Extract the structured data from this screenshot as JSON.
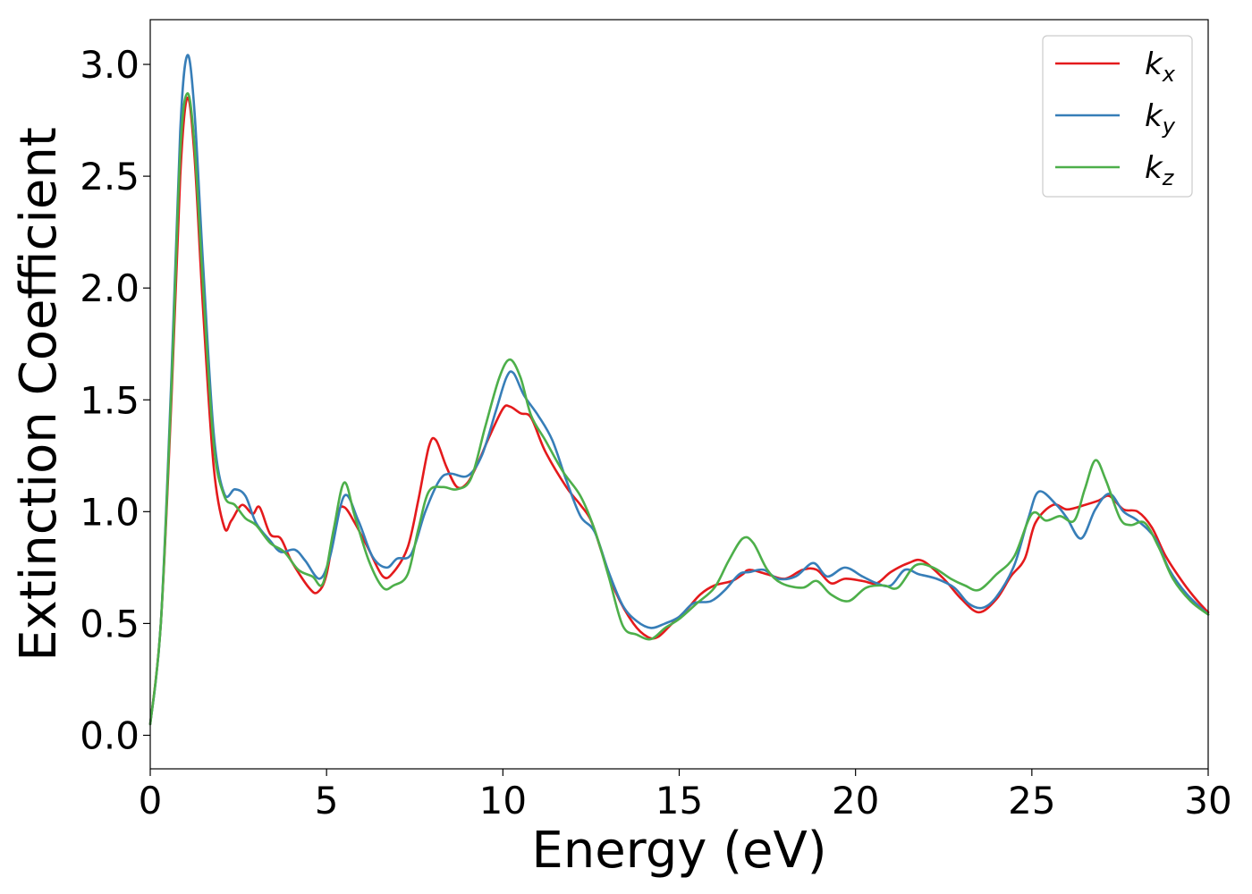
{
  "chart_data": {
    "type": "line",
    "title": "",
    "xlabel": "Energy (eV)",
    "ylabel": "Extinction Coefficient",
    "xlim": [
      0,
      30
    ],
    "ylim": [
      -0.15,
      3.2
    ],
    "xticks": [
      0,
      5,
      10,
      15,
      20,
      25,
      30
    ],
    "xtick_labels": [
      "0",
      "5",
      "10",
      "15",
      "20",
      "25",
      "30"
    ],
    "yticks": [
      0.0,
      0.5,
      1.0,
      1.5,
      2.0,
      2.5,
      3.0
    ],
    "ytick_labels": [
      "0.0",
      "0.5",
      "1.0",
      "1.5",
      "2.0",
      "2.5",
      "3.0"
    ],
    "grid": false,
    "legend_position": "top-right",
    "series": [
      {
        "name": "k",
        "subscript": "x",
        "color": "#e41a1c",
        "points": [
          [
            0,
            0.05
          ],
          [
            0.3,
            0.5
          ],
          [
            0.6,
            1.5
          ],
          [
            0.85,
            2.5
          ],
          [
            1.05,
            2.85
          ],
          [
            1.25,
            2.6
          ],
          [
            1.5,
            1.9
          ],
          [
            1.8,
            1.2
          ],
          [
            2.1,
            0.93
          ],
          [
            2.3,
            0.96
          ],
          [
            2.6,
            1.03
          ],
          [
            2.9,
            0.99
          ],
          [
            3.1,
            1.02
          ],
          [
            3.4,
            0.9
          ],
          [
            3.7,
            0.88
          ],
          [
            4.0,
            0.78
          ],
          [
            4.5,
            0.66
          ],
          [
            4.75,
            0.64
          ],
          [
            5.0,
            0.72
          ],
          [
            5.3,
            0.98
          ],
          [
            5.5,
            1.02
          ],
          [
            5.8,
            0.95
          ],
          [
            6.2,
            0.83
          ],
          [
            6.6,
            0.71
          ],
          [
            6.9,
            0.73
          ],
          [
            7.3,
            0.84
          ],
          [
            7.6,
            1.05
          ],
          [
            7.9,
            1.29
          ],
          [
            8.1,
            1.32
          ],
          [
            8.4,
            1.2
          ],
          [
            8.7,
            1.11
          ],
          [
            9.0,
            1.13
          ],
          [
            9.3,
            1.22
          ],
          [
            9.6,
            1.33
          ],
          [
            10.0,
            1.46
          ],
          [
            10.2,
            1.47
          ],
          [
            10.5,
            1.44
          ],
          [
            10.8,
            1.42
          ],
          [
            11.2,
            1.27
          ],
          [
            11.8,
            1.11
          ],
          [
            12.2,
            1.03
          ],
          [
            12.5,
            0.96
          ],
          [
            12.8,
            0.82
          ],
          [
            13.2,
            0.64
          ],
          [
            13.7,
            0.5
          ],
          [
            14.1,
            0.44
          ],
          [
            14.4,
            0.44
          ],
          [
            14.8,
            0.5
          ],
          [
            15.2,
            0.56
          ],
          [
            15.6,
            0.63
          ],
          [
            16.0,
            0.67
          ],
          [
            16.5,
            0.69
          ],
          [
            16.8,
            0.72
          ],
          [
            17.0,
            0.74
          ],
          [
            17.5,
            0.72
          ],
          [
            18.0,
            0.7
          ],
          [
            18.5,
            0.74
          ],
          [
            18.9,
            0.74
          ],
          [
            19.3,
            0.68
          ],
          [
            19.7,
            0.7
          ],
          [
            20.2,
            0.69
          ],
          [
            20.6,
            0.68
          ],
          [
            21.0,
            0.73
          ],
          [
            21.5,
            0.77
          ],
          [
            21.9,
            0.78
          ],
          [
            22.5,
            0.7
          ],
          [
            23.0,
            0.61
          ],
          [
            23.5,
            0.55
          ],
          [
            24.0,
            0.61
          ],
          [
            24.4,
            0.71
          ],
          [
            24.8,
            0.79
          ],
          [
            25.1,
            0.95
          ],
          [
            25.6,
            1.03
          ],
          [
            26.0,
            1.01
          ],
          [
            26.5,
            1.03
          ],
          [
            26.9,
            1.05
          ],
          [
            27.2,
            1.07
          ],
          [
            27.6,
            1.01
          ],
          [
            28.0,
            1.0
          ],
          [
            28.4,
            0.93
          ],
          [
            28.8,
            0.8
          ],
          [
            29.3,
            0.68
          ],
          [
            29.7,
            0.6
          ],
          [
            30.0,
            0.55
          ]
        ]
      },
      {
        "name": "k",
        "subscript": "y",
        "color": "#377eb8",
        "points": [
          [
            0,
            0.05
          ],
          [
            0.3,
            0.5
          ],
          [
            0.6,
            1.6
          ],
          [
            0.85,
            2.7
          ],
          [
            1.05,
            3.04
          ],
          [
            1.25,
            2.8
          ],
          [
            1.5,
            2.1
          ],
          [
            1.8,
            1.35
          ],
          [
            2.1,
            1.08
          ],
          [
            2.4,
            1.1
          ],
          [
            2.7,
            1.07
          ],
          [
            3.0,
            0.95
          ],
          [
            3.4,
            0.87
          ],
          [
            3.7,
            0.82
          ],
          [
            4.1,
            0.83
          ],
          [
            4.4,
            0.78
          ],
          [
            4.8,
            0.7
          ],
          [
            5.1,
            0.8
          ],
          [
            5.5,
            1.07
          ],
          [
            5.9,
            0.96
          ],
          [
            6.3,
            0.8
          ],
          [
            6.7,
            0.75
          ],
          [
            7.0,
            0.79
          ],
          [
            7.4,
            0.81
          ],
          [
            7.8,
            1.0
          ],
          [
            8.2,
            1.14
          ],
          [
            8.5,
            1.17
          ],
          [
            9.0,
            1.16
          ],
          [
            9.4,
            1.25
          ],
          [
            9.8,
            1.45
          ],
          [
            10.1,
            1.6
          ],
          [
            10.3,
            1.62
          ],
          [
            10.6,
            1.52
          ],
          [
            11.0,
            1.43
          ],
          [
            11.4,
            1.32
          ],
          [
            11.8,
            1.14
          ],
          [
            12.2,
            0.98
          ],
          [
            12.6,
            0.91
          ],
          [
            13.0,
            0.73
          ],
          [
            13.4,
            0.58
          ],
          [
            13.8,
            0.51
          ],
          [
            14.2,
            0.48
          ],
          [
            14.6,
            0.5
          ],
          [
            15.0,
            0.53
          ],
          [
            15.4,
            0.59
          ],
          [
            15.9,
            0.6
          ],
          [
            16.3,
            0.65
          ],
          [
            16.7,
            0.72
          ],
          [
            17.0,
            0.73
          ],
          [
            17.4,
            0.74
          ],
          [
            17.8,
            0.7
          ],
          [
            18.3,
            0.71
          ],
          [
            18.8,
            0.77
          ],
          [
            19.2,
            0.71
          ],
          [
            19.7,
            0.75
          ],
          [
            20.2,
            0.71
          ],
          [
            20.6,
            0.68
          ],
          [
            21.0,
            0.67
          ],
          [
            21.4,
            0.74
          ],
          [
            21.8,
            0.72
          ],
          [
            22.3,
            0.7
          ],
          [
            22.8,
            0.66
          ],
          [
            23.2,
            0.59
          ],
          [
            23.6,
            0.57
          ],
          [
            24.0,
            0.62
          ],
          [
            24.5,
            0.76
          ],
          [
            24.9,
            0.97
          ],
          [
            25.2,
            1.09
          ],
          [
            25.7,
            1.03
          ],
          [
            26.0,
            0.97
          ],
          [
            26.4,
            0.88
          ],
          [
            26.8,
            1.01
          ],
          [
            27.2,
            1.08
          ],
          [
            27.6,
            1.0
          ],
          [
            28.0,
            0.96
          ],
          [
            28.5,
            0.88
          ],
          [
            28.9,
            0.74
          ],
          [
            29.4,
            0.63
          ],
          [
            30.0,
            0.54
          ]
        ]
      },
      {
        "name": "k",
        "subscript": "z",
        "color": "#4daf4a",
        "points": [
          [
            0,
            0.05
          ],
          [
            0.3,
            0.5
          ],
          [
            0.6,
            1.55
          ],
          [
            0.85,
            2.6
          ],
          [
            1.05,
            2.87
          ],
          [
            1.25,
            2.65
          ],
          [
            1.5,
            2.0
          ],
          [
            1.8,
            1.3
          ],
          [
            2.1,
            1.07
          ],
          [
            2.4,
            1.03
          ],
          [
            2.7,
            0.97
          ],
          [
            3.0,
            0.94
          ],
          [
            3.4,
            0.86
          ],
          [
            3.8,
            0.82
          ],
          [
            4.2,
            0.74
          ],
          [
            4.6,
            0.71
          ],
          [
            4.9,
            0.68
          ],
          [
            5.2,
            0.92
          ],
          [
            5.5,
            1.13
          ],
          [
            5.8,
            0.98
          ],
          [
            6.2,
            0.78
          ],
          [
            6.6,
            0.66
          ],
          [
            6.9,
            0.67
          ],
          [
            7.3,
            0.72
          ],
          [
            7.6,
            0.92
          ],
          [
            7.9,
            1.09
          ],
          [
            8.3,
            1.11
          ],
          [
            8.7,
            1.1
          ],
          [
            9.1,
            1.15
          ],
          [
            9.5,
            1.38
          ],
          [
            9.9,
            1.6
          ],
          [
            10.2,
            1.68
          ],
          [
            10.5,
            1.6
          ],
          [
            10.8,
            1.43
          ],
          [
            11.2,
            1.32
          ],
          [
            11.7,
            1.18
          ],
          [
            12.2,
            1.07
          ],
          [
            12.6,
            0.92
          ],
          [
            13.0,
            0.71
          ],
          [
            13.4,
            0.49
          ],
          [
            13.8,
            0.45
          ],
          [
            14.2,
            0.43
          ],
          [
            14.6,
            0.48
          ],
          [
            15.0,
            0.52
          ],
          [
            15.5,
            0.59
          ],
          [
            16.0,
            0.66
          ],
          [
            16.4,
            0.78
          ],
          [
            16.8,
            0.88
          ],
          [
            17.1,
            0.86
          ],
          [
            17.5,
            0.74
          ],
          [
            17.9,
            0.68
          ],
          [
            18.5,
            0.66
          ],
          [
            18.9,
            0.69
          ],
          [
            19.3,
            0.63
          ],
          [
            19.8,
            0.6
          ],
          [
            20.3,
            0.66
          ],
          [
            20.8,
            0.67
          ],
          [
            21.2,
            0.66
          ],
          [
            21.7,
            0.76
          ],
          [
            22.2,
            0.75
          ],
          [
            22.7,
            0.7
          ],
          [
            23.1,
            0.67
          ],
          [
            23.5,
            0.65
          ],
          [
            24.0,
            0.72
          ],
          [
            24.5,
            0.8
          ],
          [
            25.0,
            0.99
          ],
          [
            25.4,
            0.96
          ],
          [
            25.8,
            0.98
          ],
          [
            26.2,
            0.96
          ],
          [
            26.5,
            1.1
          ],
          [
            26.8,
            1.23
          ],
          [
            27.1,
            1.14
          ],
          [
            27.5,
            0.97
          ],
          [
            27.8,
            0.94
          ],
          [
            28.2,
            0.95
          ],
          [
            28.6,
            0.84
          ],
          [
            29.0,
            0.7
          ],
          [
            29.5,
            0.6
          ],
          [
            30.0,
            0.54
          ]
        ]
      }
    ]
  }
}
